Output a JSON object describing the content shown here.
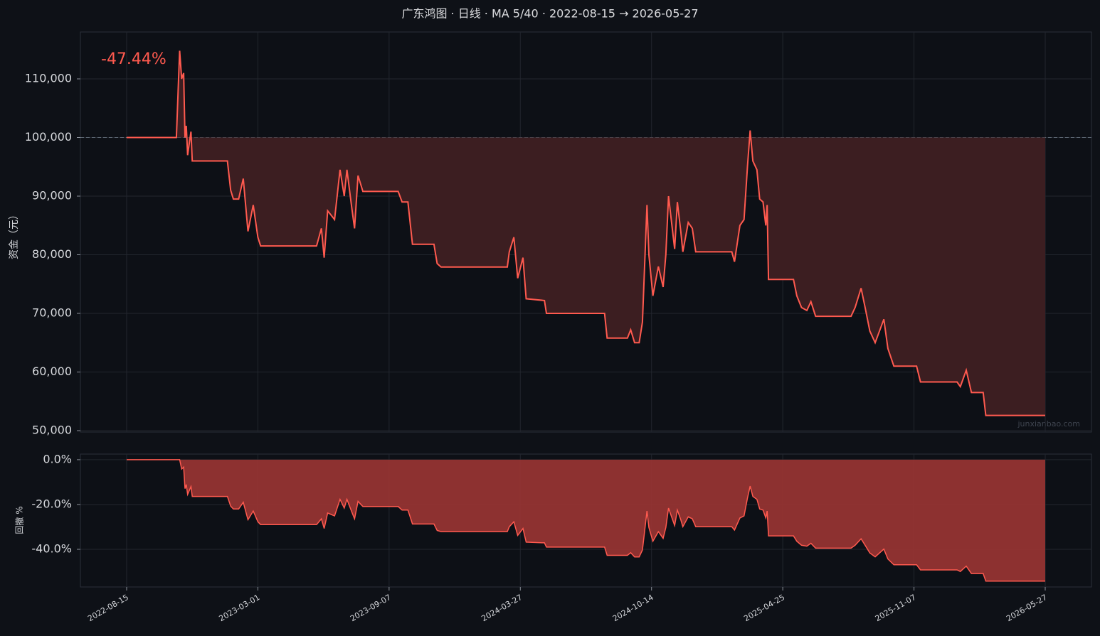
{
  "chart_data": [
    {
      "type": "line",
      "title": "广东鸿图 · 日线 · MA 5/40 · 2022-08-15 → 2026-05-27",
      "ylabel": "资金（元）",
      "annotation": "-47.44%",
      "watermark": "junxianbao.com",
      "color": "#ff5a4f",
      "fill_color": "#3c1e21",
      "baseline": 100000,
      "grid": true,
      "ylim": [
        49760,
        118000
      ],
      "yticks": [
        {
          "value": 50000,
          "label": "50,000"
        },
        {
          "value": 60000,
          "label": "60,000"
        },
        {
          "value": 70000,
          "label": "70,000"
        },
        {
          "value": 80000,
          "label": "80,000"
        },
        {
          "value": 90000,
          "label": "90,000"
        },
        {
          "value": 100000,
          "label": "100,000"
        },
        {
          "value": 110000,
          "label": "110,000"
        }
      ],
      "x": [
        "2022-08-15",
        "2022-10-29",
        "2022-11-02",
        "2022-11-03",
        "2022-11-06",
        "2022-11-09",
        "2022-11-11",
        "2022-11-13",
        "2022-11-15",
        "2022-11-20",
        "2022-11-22",
        "2023-01-14",
        "2023-01-19",
        "2023-01-23",
        "2023-01-31",
        "2023-02-07",
        "2023-02-14",
        "2023-02-22",
        "2023-03-01",
        "2023-03-05",
        "2023-05-25",
        "2023-06-01",
        "2023-06-05",
        "2023-06-10",
        "2023-06-20",
        "2023-06-28",
        "2023-07-04",
        "2023-07-08",
        "2023-07-15",
        "2023-07-19",
        "2023-07-24",
        "2023-07-31",
        "2023-09-21",
        "2023-09-27",
        "2023-10-06",
        "2023-10-13",
        "2023-11-15",
        "2023-11-20",
        "2023-11-26",
        "2024-03-07",
        "2024-03-10",
        "2024-03-17",
        "2024-03-23",
        "2024-03-31",
        "2024-04-05",
        "2024-05-03",
        "2024-05-06",
        "2024-08-03",
        "2024-08-07",
        "2024-09-07",
        "2024-09-12",
        "2024-09-18",
        "2024-09-25",
        "2024-09-30",
        "2024-10-07",
        "2024-10-10",
        "2024-10-16",
        "2024-10-24",
        "2024-10-31",
        "2024-11-04",
        "2024-11-08",
        "2024-11-14",
        "2024-11-17",
        "2024-11-21",
        "2024-11-26",
        "2024-11-29",
        "2024-12-07",
        "2024-12-13",
        "2024-12-18",
        "2025-02-09",
        "2025-02-13",
        "2025-02-21",
        "2025-02-27",
        "2025-03-04",
        "2025-03-08",
        "2025-03-12",
        "2025-03-18",
        "2025-03-22",
        "2025-03-27",
        "2025-03-31",
        "2025-04-02",
        "2025-04-04",
        "2025-05-11",
        "2025-05-16",
        "2025-05-23",
        "2025-05-31",
        "2025-06-06",
        "2025-06-13",
        "2025-08-05",
        "2025-08-11",
        "2025-08-20",
        "2025-08-26",
        "2025-09-02",
        "2025-09-10",
        "2025-09-23",
        "2025-09-29",
        "2025-10-08",
        "2025-11-11",
        "2025-11-17",
        "2026-01-12",
        "2026-01-17",
        "2026-01-26",
        "2026-02-03",
        "2026-02-21",
        "2026-02-25",
        "2026-05-27"
      ],
      "values": [
        100000,
        100000,
        112000,
        114800,
        110000,
        111000,
        100000,
        102000,
        97000,
        101000,
        96000,
        96000,
        91000,
        89500,
        89500,
        93000,
        84000,
        88500,
        83000,
        81500,
        81500,
        84500,
        79500,
        87500,
        86000,
        94500,
        90000,
        94500,
        88000,
        84500,
        93500,
        90800,
        90800,
        89000,
        89000,
        81800,
        81800,
        78500,
        77900,
        77900,
        80500,
        83000,
        76000,
        79500,
        72500,
        72200,
        70000,
        70000,
        65800,
        65800,
        67200,
        65000,
        65000,
        68500,
        88500,
        80000,
        73000,
        78000,
        74500,
        80000,
        90000,
        84000,
        81000,
        89000,
        84000,
        80500,
        85500,
        84500,
        80500,
        80500,
        78800,
        85000,
        86000,
        95000,
        101200,
        96000,
        94500,
        89500,
        89000,
        85000,
        88500,
        75800,
        75800,
        73000,
        71000,
        70500,
        72000,
        69500,
        69500,
        71000,
        74300,
        71000,
        67000,
        65000,
        69000,
        64000,
        61000,
        61000,
        58300,
        58300,
        57500,
        60300,
        56500,
        56500,
        52600,
        52600
      ]
    },
    {
      "type": "area",
      "ylabel": "回撤 %",
      "color": "#ff5a4f",
      "fill_color": "#9b3533",
      "grid": true,
      "ylim": [
        -56.8,
        2.5
      ],
      "yticks": [
        {
          "value": 0,
          "label": "0.0%"
        },
        {
          "value": -20,
          "label": "-20.0%"
        },
        {
          "value": -40,
          "label": "-40.0%"
        }
      ],
      "xlim": [
        "2022-06-06",
        "2026-08-06"
      ],
      "xticks": [
        "2022-08-15",
        "2023-03-01",
        "2023-09-07",
        "2024-03-27",
        "2024-10-14",
        "2025-04-25",
        "2025-11-07",
        "2026-05-27"
      ],
      "x": [
        "2022-08-15",
        "2022-10-29",
        "2022-11-02",
        "2022-11-03",
        "2022-11-06",
        "2022-11-09",
        "2022-11-11",
        "2022-11-13",
        "2022-11-15",
        "2022-11-20",
        "2022-11-22",
        "2023-01-14",
        "2023-01-19",
        "2023-01-23",
        "2023-01-31",
        "2023-02-07",
        "2023-02-14",
        "2023-02-22",
        "2023-03-01",
        "2023-03-05",
        "2023-05-25",
        "2023-06-01",
        "2023-06-05",
        "2023-06-10",
        "2023-06-20",
        "2023-06-28",
        "2023-07-04",
        "2023-07-08",
        "2023-07-15",
        "2023-07-19",
        "2023-07-24",
        "2023-07-31",
        "2023-09-21",
        "2023-09-27",
        "2023-10-06",
        "2023-10-13",
        "2023-11-15",
        "2023-11-20",
        "2023-11-26",
        "2024-03-07",
        "2024-03-10",
        "2024-03-17",
        "2024-03-23",
        "2024-03-31",
        "2024-04-05",
        "2024-05-03",
        "2024-05-06",
        "2024-08-03",
        "2024-08-07",
        "2024-09-07",
        "2024-09-12",
        "2024-09-18",
        "2024-09-25",
        "2024-09-30",
        "2024-10-07",
        "2024-10-10",
        "2024-10-16",
        "2024-10-24",
        "2024-10-31",
        "2024-11-04",
        "2024-11-08",
        "2024-11-14",
        "2024-11-17",
        "2024-11-21",
        "2024-11-26",
        "2024-11-29",
        "2024-12-07",
        "2024-12-13",
        "2024-12-18",
        "2025-02-09",
        "2025-02-13",
        "2025-02-21",
        "2025-02-27",
        "2025-03-04",
        "2025-03-08",
        "2025-03-12",
        "2025-03-18",
        "2025-03-22",
        "2025-03-27",
        "2025-03-31",
        "2025-04-02",
        "2025-04-04",
        "2025-05-11",
        "2025-05-16",
        "2025-05-23",
        "2025-05-31",
        "2025-06-06",
        "2025-06-13",
        "2025-08-05",
        "2025-08-11",
        "2025-08-20",
        "2025-08-26",
        "2025-09-02",
        "2025-09-10",
        "2025-09-23",
        "2025-09-29",
        "2025-10-08",
        "2025-11-11",
        "2025-11-17",
        "2026-01-12",
        "2026-01-17",
        "2026-01-26",
        "2026-02-03",
        "2026-02-21",
        "2026-02-25",
        "2026-05-27"
      ],
      "values": [
        0,
        0,
        0,
        0,
        -4.2,
        -3.3,
        -12.9,
        -11.1,
        -15.5,
        -12.0,
        -16.4,
        -16.4,
        -20.7,
        -22.0,
        -22.0,
        -19.0,
        -26.8,
        -22.9,
        -27.7,
        -29.0,
        -29.0,
        -26.4,
        -30.7,
        -23.8,
        -25.1,
        -17.7,
        -21.6,
        -17.7,
        -23.3,
        -26.4,
        -18.6,
        -20.9,
        -20.9,
        -22.5,
        -22.5,
        -28.7,
        -28.7,
        -31.6,
        -32.1,
        -32.1,
        -29.9,
        -27.7,
        -33.8,
        -30.7,
        -36.8,
        -37.1,
        -39.0,
        -39.0,
        -42.7,
        -42.7,
        -41.5,
        -43.4,
        -43.4,
        -40.3,
        -22.9,
        -30.3,
        -36.4,
        -32.1,
        -35.1,
        -30.3,
        -21.6,
        -26.8,
        -29.4,
        -22.5,
        -26.8,
        -29.9,
        -25.5,
        -26.4,
        -29.9,
        -29.9,
        -31.4,
        -26.0,
        -25.1,
        -17.2,
        -11.8,
        -16.4,
        -17.7,
        -22.0,
        -22.5,
        -26.0,
        -22.9,
        -34.0,
        -34.0,
        -36.4,
        -38.2,
        -38.6,
        -37.3,
        -39.5,
        -39.5,
        -38.2,
        -35.3,
        -38.2,
        -41.6,
        -43.4,
        -39.9,
        -44.3,
        -46.9,
        -46.9,
        -49.2,
        -49.2,
        -49.9,
        -47.5,
        -50.8,
        -50.8,
        -54.2,
        -54.2
      ]
    }
  ]
}
